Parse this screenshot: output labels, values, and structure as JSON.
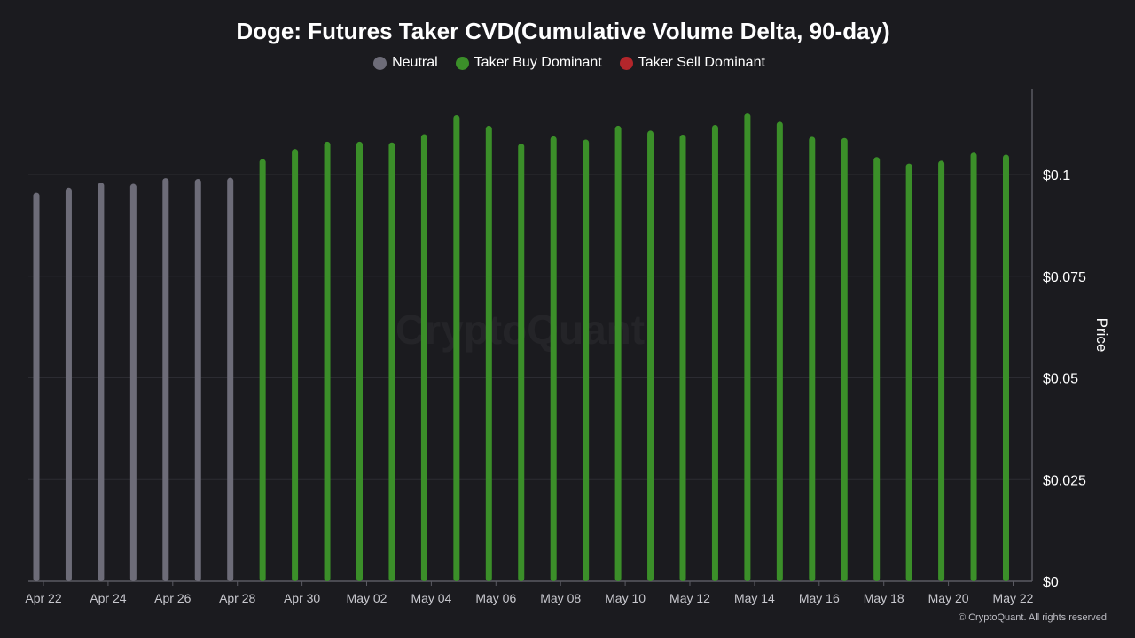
{
  "chart_data": {
    "type": "bar",
    "title": "Doge: Futures Taker CVD(Cumulative Volume Delta, 90-day)",
    "ylabel": "Price",
    "ylim": [
      0,
      0.12
    ],
    "y_ticks": [
      "$0",
      "$0.025",
      "$0.05",
      "$0.075",
      "$0.1"
    ],
    "y_tick_values": [
      0,
      0.025,
      0.05,
      0.075,
      0.1
    ],
    "x_tick_labels": [
      "Apr 22",
      "Apr 24",
      "Apr 26",
      "Apr 28",
      "Apr 30",
      "May 02",
      "May 04",
      "May 06",
      "May 08",
      "May 10",
      "May 12",
      "May 14",
      "May 16",
      "May 18",
      "May 20",
      "May 22"
    ],
    "grid": true,
    "legend_position": "top-center",
    "legend": [
      {
        "label": "Neutral",
        "color": "#6d6c78"
      },
      {
        "label": "Taker Buy Dominant",
        "color": "#3b8f29"
      },
      {
        "label": "Taker Sell Dominant",
        "color": "#b3262b"
      }
    ],
    "categories": [
      "Apr 22",
      "Apr 23",
      "Apr 24",
      "Apr 25",
      "Apr 26",
      "Apr 27",
      "Apr 28",
      "Apr 29",
      "Apr 30",
      "May 01",
      "May 02",
      "May 03",
      "May 04",
      "May 05",
      "May 06",
      "May 07",
      "May 08",
      "May 09",
      "May 10",
      "May 11",
      "May 12",
      "May 13",
      "May 14",
      "May 15",
      "May 16",
      "May 17",
      "May 18",
      "May 19",
      "May 20",
      "May 21",
      "May 22"
    ],
    "values": [
      0.0955,
      0.0968,
      0.098,
      0.0977,
      0.0991,
      0.0989,
      0.0992,
      0.1038,
      0.1063,
      0.1081,
      0.1081,
      0.1079,
      0.1099,
      0.1146,
      0.112,
      0.1076,
      0.1094,
      0.1086,
      0.112,
      0.1108,
      0.1098,
      0.1122,
      0.115,
      0.113,
      0.1093,
      0.109,
      0.1043,
      0.1027,
      0.1034,
      0.1054,
      0.1049
    ],
    "status": [
      "Neutral",
      "Neutral",
      "Neutral",
      "Neutral",
      "Neutral",
      "Neutral",
      "Neutral",
      "Taker Buy Dominant",
      "Taker Buy Dominant",
      "Taker Buy Dominant",
      "Taker Buy Dominant",
      "Taker Buy Dominant",
      "Taker Buy Dominant",
      "Taker Buy Dominant",
      "Taker Buy Dominant",
      "Taker Buy Dominant",
      "Taker Buy Dominant",
      "Taker Buy Dominant",
      "Taker Buy Dominant",
      "Taker Buy Dominant",
      "Taker Buy Dominant",
      "Taker Buy Dominant",
      "Taker Buy Dominant",
      "Taker Buy Dominant",
      "Taker Buy Dominant",
      "Taker Buy Dominant",
      "Taker Buy Dominant",
      "Taker Buy Dominant",
      "Taker Buy Dominant",
      "Taker Buy Dominant",
      "Taker Buy Dominant"
    ]
  },
  "watermark": "CryptoQuant",
  "copyright": "© CryptoQuant. All rights reserved"
}
